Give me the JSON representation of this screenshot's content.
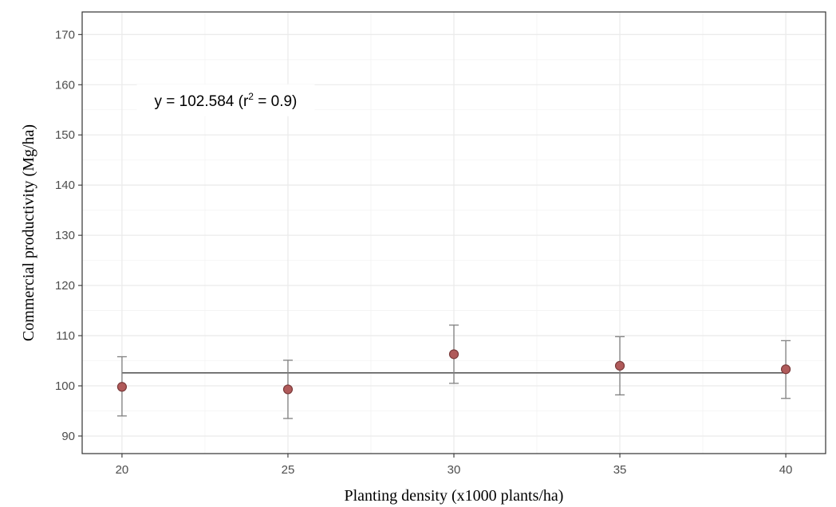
{
  "chart_data": {
    "type": "scatter",
    "title": "",
    "xlabel": "Planting density (x1000 plants/ha)",
    "ylabel": "Commercial productivity (Mg/ha)",
    "xlim": [
      18.8,
      41.2
    ],
    "ylim": [
      86.5,
      174.5
    ],
    "x_ticks": [
      20,
      25,
      30,
      35,
      40
    ],
    "y_ticks": [
      90,
      100,
      110,
      120,
      130,
      140,
      150,
      160,
      170
    ],
    "grid": true,
    "points": [
      {
        "x": 20,
        "y": 99.8,
        "lower": 94.0,
        "upper": 105.8
      },
      {
        "x": 25,
        "y": 99.3,
        "lower": 93.5,
        "upper": 105.1
      },
      {
        "x": 30,
        "y": 106.3,
        "lower": 100.5,
        "upper": 112.1
      },
      {
        "x": 35,
        "y": 104.0,
        "lower": 98.2,
        "upper": 109.8
      },
      {
        "x": 40,
        "y": 103.3,
        "lower": 97.5,
        "upper": 109.0
      }
    ],
    "fit_line": {
      "x": [
        20,
        40
      ],
      "y": 102.584
    },
    "annotation": {
      "text_main": "y = 102.584 (r",
      "text_sup": "2",
      "text_tail": " = 0.9)",
      "x": 24.1,
      "y": 156.9
    },
    "colors": {
      "point_fill": "#b05a5a",
      "point_stroke": "#7a3a3a",
      "errorbar": "#808080",
      "fit_line": "#4d4d4d",
      "panel_border": "#333333"
    }
  }
}
